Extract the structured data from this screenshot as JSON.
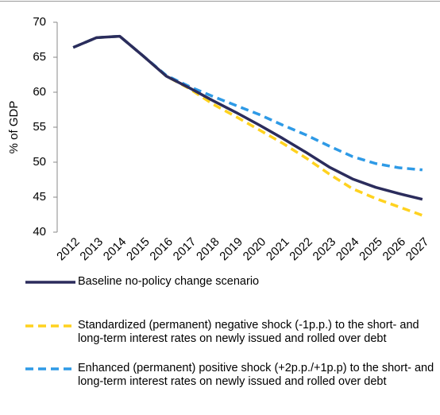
{
  "chart_data": {
    "type": "line",
    "y_label": "% of GDP",
    "categories": [
      "2012",
      "2013",
      "2014",
      "2015",
      "2016",
      "2017",
      "2018",
      "2019",
      "2020",
      "2021",
      "2022",
      "2023",
      "2024",
      "2025",
      "2026",
      "2027"
    ],
    "ylim": [
      40,
      70
    ],
    "yticks": [
      40,
      45,
      50,
      55,
      60,
      65,
      70
    ],
    "grid": false,
    "series": [
      {
        "name": "Baseline no-policy change scenario",
        "color": "#2b2c5c",
        "line_style": "solid",
        "values": [
          66.4,
          67.8,
          68.0,
          65.2,
          62.3,
          60.6,
          58.8,
          57.1,
          55.3,
          53.4,
          51.4,
          49.3,
          47.6,
          46.4,
          45.5,
          44.7
        ]
      },
      {
        "name": "Standardized (permanent) negative shock (-1p.p.) to the short- and long-term interest rates on newly issued and rolled over debt",
        "color": "#ffd21f",
        "line_style": "dashed",
        "values": [
          66.4,
          67.8,
          68.0,
          65.2,
          62.3,
          60.5,
          58.3,
          56.5,
          54.6,
          52.7,
          50.6,
          48.3,
          46.2,
          44.8,
          43.6,
          42.4
        ]
      },
      {
        "name": "Enhanced (permanent) positive shock (+2p.p./+1p.p) to the short- and long-term interest rates on newly issued and rolled over debt",
        "color": "#2e9ae6",
        "line_style": "dashed",
        "values": [
          66.4,
          67.8,
          68.0,
          65.2,
          62.4,
          60.8,
          59.4,
          58.1,
          56.8,
          55.3,
          53.9,
          52.3,
          50.8,
          49.8,
          49.2,
          48.9
        ]
      }
    ]
  }
}
